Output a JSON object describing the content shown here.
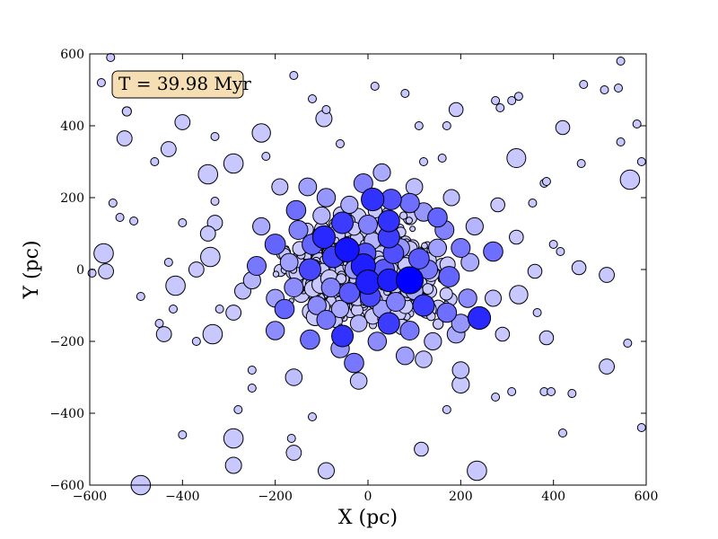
{
  "chart_data": {
    "type": "scatter",
    "title": "",
    "xlabel": "X (pc)",
    "ylabel": "Y (pc)",
    "xlim": [
      -600,
      600
    ],
    "ylim": [
      -600,
      600
    ],
    "xticks": [
      -600,
      -400,
      -200,
      0,
      200,
      400,
      600
    ],
    "yticks": [
      -600,
      -400,
      -200,
      0,
      200,
      400,
      600
    ],
    "xtick_labels": [
      "−600",
      "−400",
      "−200",
      "0",
      "200",
      "400",
      "600"
    ],
    "ytick_labels": [
      "−600",
      "−400",
      "−200",
      "0",
      "200",
      "400",
      "600"
    ],
    "grid": false,
    "annotation": "T = 39.98 Myr",
    "annotation_placement": "top-left",
    "annotation_box_color": "#f5deb3",
    "marker_edge_color": "#000000",
    "color_light": "#c8c8ff",
    "color_dark": "#0000ff",
    "points": [
      {
        "x": 90,
        "y": -30,
        "size": 5,
        "shade": 1.0
      },
      {
        "x": -45,
        "y": 55,
        "size": 4.5,
        "shade": 0.9
      },
      {
        "x": -10,
        "y": 10,
        "size": 4.5,
        "shade": 0.85
      },
      {
        "x": 0,
        "y": -35,
        "size": 4.5,
        "shade": 0.85
      },
      {
        "x": 45,
        "y": -30,
        "size": 4.2,
        "shade": 0.85
      },
      {
        "x": 240,
        "y": -135,
        "size": 4.2,
        "shade": 0.8
      },
      {
        "x": -95,
        "y": 90,
        "size": 4.2,
        "shade": 0.8
      },
      {
        "x": 10,
        "y": 195,
        "size": 4.2,
        "shade": 0.75
      },
      {
        "x": 45,
        "y": 135,
        "size": 4,
        "shade": 0.75
      },
      {
        "x": -55,
        "y": -185,
        "size": 4,
        "shade": 0.75
      },
      {
        "x": -55,
        "y": 130,
        "size": 4,
        "shade": 0.7
      },
      {
        "x": -75,
        "y": 35,
        "size": 4,
        "shade": 0.7
      },
      {
        "x": 45,
        "y": 90,
        "size": 4,
        "shade": 0.7
      },
      {
        "x": 120,
        "y": -100,
        "size": 4,
        "shade": 0.7
      },
      {
        "x": 45,
        "y": -150,
        "size": 4,
        "shade": 0.7
      },
      {
        "x": -125,
        "y": 0,
        "size": 4,
        "shade": 0.65
      },
      {
        "x": 5,
        "y": -75,
        "size": 3.8,
        "shade": 0.65
      },
      {
        "x": 50,
        "y": 195,
        "size": 3.8,
        "shade": 0.6
      },
      {
        "x": -5,
        "y": 45,
        "size": 3.8,
        "shade": 0.6
      },
      {
        "x": 55,
        "y": 45,
        "size": 3.8,
        "shade": 0.6
      },
      {
        "x": -40,
        "y": -65,
        "size": 3.8,
        "shade": 0.55
      },
      {
        "x": 35,
        "y": 0,
        "size": 3.8,
        "shade": 0.55
      },
      {
        "x": 110,
        "y": 30,
        "size": 3.8,
        "shade": 0.55
      },
      {
        "x": -200,
        "y": 70,
        "size": 3.8,
        "shade": 0.5
      },
      {
        "x": 175,
        "y": -20,
        "size": 3.8,
        "shade": 0.5
      },
      {
        "x": -120,
        "y": 70,
        "size": 3.8,
        "shade": 0.5
      },
      {
        "x": 150,
        "y": 145,
        "size": 3.6,
        "shade": 0.5
      },
      {
        "x": -180,
        "y": -110,
        "size": 3.6,
        "shade": 0.5
      },
      {
        "x": 90,
        "y": 185,
        "size": 3.6,
        "shade": 0.45
      },
      {
        "x": 270,
        "y": 50,
        "size": 3.6,
        "shade": 0.45
      },
      {
        "x": -155,
        "y": 165,
        "size": 3.6,
        "shade": 0.45
      },
      {
        "x": -125,
        "y": -195,
        "size": 3.6,
        "shade": 0.45
      },
      {
        "x": 170,
        "y": -120,
        "size": 3.6,
        "shade": 0.45
      },
      {
        "x": -30,
        "y": -260,
        "size": 3.6,
        "shade": 0.4
      },
      {
        "x": 130,
        "y": 0,
        "size": 3.5,
        "shade": 0.4
      },
      {
        "x": -240,
        "y": 10,
        "size": 3.5,
        "shade": 0.4
      },
      {
        "x": 200,
        "y": 60,
        "size": 3.5,
        "shade": 0.4
      },
      {
        "x": -90,
        "y": -140,
        "size": 3.5,
        "shade": 0.4
      },
      {
        "x": 90,
        "y": -170,
        "size": 3.5,
        "shade": 0.4
      },
      {
        "x": -150,
        "y": 110,
        "size": 3.5,
        "shade": 0.35
      },
      {
        "x": 165,
        "y": 110,
        "size": 3.5,
        "shade": 0.35
      },
      {
        "x": -10,
        "y": 240,
        "size": 3.5,
        "shade": 0.35
      },
      {
        "x": 0,
        "y": 125,
        "size": 3.5,
        "shade": 0.35
      },
      {
        "x": -80,
        "y": -50,
        "size": 3.5,
        "shade": 0.35
      },
      {
        "x": 60,
        "y": -90,
        "size": 3.5,
        "shade": 0.35
      },
      {
        "x": -160,
        "y": -50,
        "size": 3.5,
        "shade": 0.3
      },
      {
        "x": 215,
        "y": -80,
        "size": 3.4,
        "shade": 0.3
      },
      {
        "x": -110,
        "y": -100,
        "size": 3.4,
        "shade": 0.3
      },
      {
        "x": 20,
        "y": -200,
        "size": 3.4,
        "shade": 0.3
      },
      {
        "x": -200,
        "y": -170,
        "size": 3.4,
        "shade": 0.3
      },
      {
        "x": 200,
        "y": -150,
        "size": 3.4,
        "shade": 0.25
      },
      {
        "x": -60,
        "y": -220,
        "size": 3.4,
        "shade": 0.25
      },
      {
        "x": 120,
        "y": 160,
        "size": 3.4,
        "shade": 0.25
      },
      {
        "x": -90,
        "y": 200,
        "size": 3.4,
        "shade": 0.25
      },
      {
        "x": 70,
        "y": 60,
        "size": 3.4,
        "shade": 0.25
      },
      {
        "x": -30,
        "y": 0,
        "size": 3.4,
        "shade": 0.25
      },
      {
        "x": 150,
        "y": 60,
        "size": 3.3,
        "shade": 0.2
      },
      {
        "x": -170,
        "y": 20,
        "size": 3.3,
        "shade": 0.2
      },
      {
        "x": 30,
        "y": -110,
        "size": 3.3,
        "shade": 0.2
      },
      {
        "x": -200,
        "y": -80,
        "size": 3.3,
        "shade": 0.2
      },
      {
        "x": 80,
        "y": -240,
        "size": 3.3,
        "shade": 0.2
      },
      {
        "x": -130,
        "y": 230,
        "size": 3.3,
        "shade": 0.2
      },
      {
        "x": 190,
        "y": -180,
        "size": 3.3,
        "shade": 0.15
      },
      {
        "x": 220,
        "y": 20,
        "size": 3.3,
        "shade": 0.15
      },
      {
        "x": -40,
        "y": 180,
        "size": 3.2,
        "shade": 0.15
      },
      {
        "x": 30,
        "y": 270,
        "size": 3.2,
        "shade": 0.15
      },
      {
        "x": -230,
        "y": 120,
        "size": 3.2,
        "shade": 0.15
      },
      {
        "x": 100,
        "y": -60,
        "size": 3.2,
        "shade": 0.15
      },
      {
        "x": -60,
        "y": -110,
        "size": 3.2,
        "shade": 0.15
      },
      {
        "x": 140,
        "y": -200,
        "size": 3.2,
        "shade": 0.1
      },
      {
        "x": -100,
        "y": 150,
        "size": 3.2,
        "shade": 0.1
      },
      {
        "x": 230,
        "y": 120,
        "size": 3.2,
        "shade": 0.1
      },
      {
        "x": -250,
        "y": -30,
        "size": 3.2,
        "shade": 0.1
      },
      {
        "x": 10,
        "y": 80,
        "size": 3.1,
        "shade": 0.1
      },
      {
        "x": -20,
        "y": -150,
        "size": 3.1,
        "shade": 0.1
      },
      {
        "x": 120,
        "y": -250,
        "size": 3.1,
        "shade": 0.05
      },
      {
        "x": 200,
        "y": -280,
        "size": 3.1,
        "shade": 0.05
      },
      {
        "x": -160,
        "y": -300,
        "size": 3.1,
        "shade": 0.05
      },
      {
        "x": 100,
        "y": 230,
        "size": 3.1,
        "shade": 0.05
      },
      {
        "x": -20,
        "y": -310,
        "size": 3.1,
        "shade": 0.05
      },
      {
        "x": 180,
        "y": 200,
        "size": 3,
        "shade": 0.05
      },
      {
        "x": -190,
        "y": 230,
        "size": 3,
        "shade": 0.05
      },
      {
        "x": 270,
        "y": -80,
        "size": 3,
        "shade": 0.05
      },
      {
        "x": -270,
        "y": -60,
        "size": 3,
        "shade": 0.05
      },
      {
        "x": -345,
        "y": 265,
        "size": 3.6,
        "shade": 0.0
      },
      {
        "x": -570,
        "y": 45,
        "size": 3.6,
        "shade": 0.0
      },
      {
        "x": -415,
        "y": -45,
        "size": 3.6,
        "shade": 0.0
      },
      {
        "x": -340,
        "y": 35,
        "size": 3.6,
        "shade": 0.0
      },
      {
        "x": -335,
        "y": -180,
        "size": 3.6,
        "shade": 0.0
      },
      {
        "x": -290,
        "y": 295,
        "size": 3.6,
        "shade": 0.0
      },
      {
        "x": -290,
        "y": -470,
        "size": 3.6,
        "shade": 0.0
      },
      {
        "x": -490,
        "y": -600,
        "size": 3.6,
        "shade": 0.0
      },
      {
        "x": -230,
        "y": 380,
        "size": 3.4,
        "shade": 0.0
      },
      {
        "x": 235,
        "y": -560,
        "size": 3.6,
        "shade": 0.0
      },
      {
        "x": 320,
        "y": 310,
        "size": 3.5,
        "shade": 0.0
      },
      {
        "x": 565,
        "y": 250,
        "size": 3.6,
        "shade": 0.0
      },
      {
        "x": 325,
        "y": -70,
        "size": 3.4,
        "shade": 0.0
      },
      {
        "x": -290,
        "y": -545,
        "size": 3.0,
        "shade": 0.0
      },
      {
        "x": -90,
        "y": -560,
        "size": 3.0,
        "shade": 0.0
      },
      {
        "x": 200,
        "y": -320,
        "size": 3.2,
        "shade": 0.0
      },
      {
        "x": -95,
        "y": 420,
        "size": 3.0,
        "shade": 0.0
      },
      {
        "x": -430,
        "y": 335,
        "size": 2.8,
        "shade": 0.0
      },
      {
        "x": -400,
        "y": 410,
        "size": 2.8,
        "shade": 0.0
      },
      {
        "x": -525,
        "y": 365,
        "size": 2.8,
        "shade": 0.0
      },
      {
        "x": -565,
        "y": -5,
        "size": 2.8,
        "shade": 0.0
      },
      {
        "x": -440,
        "y": -180,
        "size": 2.8,
        "shade": 0.0
      },
      {
        "x": -290,
        "y": -120,
        "size": 2.8,
        "shade": 0.0
      },
      {
        "x": -330,
        "y": 130,
        "size": 2.8,
        "shade": 0.0
      },
      {
        "x": -345,
        "y": 100,
        "size": 2.8,
        "shade": 0.0
      },
      {
        "x": -370,
        "y": 0,
        "size": 2.8,
        "shade": 0.0
      },
      {
        "x": -160,
        "y": -510,
        "size": 2.8,
        "shade": 0.0
      },
      {
        "x": 190,
        "y": 445,
        "size": 2.6,
        "shade": 0.0
      },
      {
        "x": 420,
        "y": 395,
        "size": 2.6,
        "shade": 0.0
      },
      {
        "x": 515,
        "y": -15,
        "size": 2.8,
        "shade": 0.0
      },
      {
        "x": 515,
        "y": -270,
        "size": 2.8,
        "shade": 0.0
      },
      {
        "x": 455,
        "y": 5,
        "size": 2.6,
        "shade": 0.0
      },
      {
        "x": 385,
        "y": -190,
        "size": 2.6,
        "shade": 0.0
      },
      {
        "x": 360,
        "y": -5,
        "size": 2.6,
        "shade": 0.0
      },
      {
        "x": 290,
        "y": -180,
        "size": 2.6,
        "shade": 0.0
      },
      {
        "x": 115,
        "y": -500,
        "size": 2.6,
        "shade": 0.0
      },
      {
        "x": 320,
        "y": 90,
        "size": 2.6,
        "shade": 0.0
      },
      {
        "x": 280,
        "y": 180,
        "size": 2.6,
        "shade": 0.0
      },
      {
        "x": -575,
        "y": 520,
        "size": 1.5,
        "shade": 0.0
      },
      {
        "x": -555,
        "y": 590,
        "size": 1.5,
        "shade": 0.0
      },
      {
        "x": -520,
        "y": 440,
        "size": 1.7,
        "shade": 0.0
      },
      {
        "x": -505,
        "y": 135,
        "size": 1.5,
        "shade": 0.0
      },
      {
        "x": -550,
        "y": 185,
        "size": 1.5,
        "shade": 0.0
      },
      {
        "x": -535,
        "y": 145,
        "size": 1.5,
        "shade": 0.0
      },
      {
        "x": -595,
        "y": -10,
        "size": 1.5,
        "shade": 0.0
      },
      {
        "x": -490,
        "y": -75,
        "size": 1.5,
        "shade": 0.0
      },
      {
        "x": -400,
        "y": -460,
        "size": 1.5,
        "shade": 0.0
      },
      {
        "x": -450,
        "y": -150,
        "size": 1.5,
        "shade": 0.0
      },
      {
        "x": -460,
        "y": 300,
        "size": 1.5,
        "shade": 0.0
      },
      {
        "x": -430,
        "y": 20,
        "size": 1.5,
        "shade": 0.0
      },
      {
        "x": -400,
        "y": 130,
        "size": 1.5,
        "shade": 0.0
      },
      {
        "x": -420,
        "y": -110,
        "size": 1.5,
        "shade": 0.0
      },
      {
        "x": -370,
        "y": -200,
        "size": 1.5,
        "shade": 0.0
      },
      {
        "x": -330,
        "y": 370,
        "size": 1.5,
        "shade": 0.0
      },
      {
        "x": -330,
        "y": 190,
        "size": 1.5,
        "shade": 0.0
      },
      {
        "x": -320,
        "y": -110,
        "size": 1.5,
        "shade": 0.0
      },
      {
        "x": -280,
        "y": -390,
        "size": 1.5,
        "shade": 0.0
      },
      {
        "x": -250,
        "y": -330,
        "size": 1.5,
        "shade": 0.0
      },
      {
        "x": -250,
        "y": -280,
        "size": 1.5,
        "shade": 0.0
      },
      {
        "x": -220,
        "y": 315,
        "size": 1.5,
        "shade": 0.0
      },
      {
        "x": -160,
        "y": 540,
        "size": 1.5,
        "shade": 0.0
      },
      {
        "x": -165,
        "y": -470,
        "size": 1.5,
        "shade": 0.0
      },
      {
        "x": -120,
        "y": -410,
        "size": 1.5,
        "shade": 0.0
      },
      {
        "x": -120,
        "y": 475,
        "size": 1.5,
        "shade": 0.0
      },
      {
        "x": -90,
        "y": 445,
        "size": 1.5,
        "shade": 0.0
      },
      {
        "x": -60,
        "y": 350,
        "size": 1.5,
        "shade": 0.0
      },
      {
        "x": 15,
        "y": 510,
        "size": 1.5,
        "shade": 0.0
      },
      {
        "x": 80,
        "y": 490,
        "size": 1.5,
        "shade": 0.0
      },
      {
        "x": 110,
        "y": 400,
        "size": 1.5,
        "shade": 0.0
      },
      {
        "x": 120,
        "y": 300,
        "size": 1.5,
        "shade": 0.0
      },
      {
        "x": 170,
        "y": 400,
        "size": 1.5,
        "shade": 0.0
      },
      {
        "x": 170,
        "y": -390,
        "size": 1.5,
        "shade": 0.0
      },
      {
        "x": 160,
        "y": 310,
        "size": 1.5,
        "shade": 0.0
      },
      {
        "x": 275,
        "y": -355,
        "size": 1.5,
        "shade": 0.0
      },
      {
        "x": 275,
        "y": 470,
        "size": 1.5,
        "shade": 0.0
      },
      {
        "x": 310,
        "y": 470,
        "size": 1.5,
        "shade": 0.0
      },
      {
        "x": 285,
        "y": 450,
        "size": 1.5,
        "shade": 0.0
      },
      {
        "x": 310,
        "y": -340,
        "size": 1.5,
        "shade": 0.0
      },
      {
        "x": 355,
        "y": 185,
        "size": 1.5,
        "shade": 0.0
      },
      {
        "x": 365,
        "y": -120,
        "size": 1.5,
        "shade": 0.0
      },
      {
        "x": 380,
        "y": -340,
        "size": 1.5,
        "shade": 0.0
      },
      {
        "x": 395,
        "y": -340,
        "size": 1.5,
        "shade": 0.0
      },
      {
        "x": 380,
        "y": 240,
        "size": 1.5,
        "shade": 0.0
      },
      {
        "x": 385,
        "y": 245,
        "size": 1.5,
        "shade": 0.0
      },
      {
        "x": 400,
        "y": 70,
        "size": 1.5,
        "shade": 0.0
      },
      {
        "x": 415,
        "y": 50,
        "size": 1.5,
        "shade": 0.0
      },
      {
        "x": 420,
        "y": -455,
        "size": 1.5,
        "shade": 0.0
      },
      {
        "x": 440,
        "y": -345,
        "size": 1.5,
        "shade": 0.0
      },
      {
        "x": 460,
        "y": 295,
        "size": 1.5,
        "shade": 0.0
      },
      {
        "x": 465,
        "y": 515,
        "size": 1.5,
        "shade": 0.0
      },
      {
        "x": 510,
        "y": 500,
        "size": 1.5,
        "shade": 0.0
      },
      {
        "x": 540,
        "y": 505,
        "size": 1.5,
        "shade": 0.0
      },
      {
        "x": 545,
        "y": 580,
        "size": 1.5,
        "shade": 0.0
      },
      {
        "x": 545,
        "y": 355,
        "size": 1.5,
        "shade": 0.0
      },
      {
        "x": 560,
        "y": -205,
        "size": 1.5,
        "shade": 0.0
      },
      {
        "x": 580,
        "y": 405,
        "size": 1.5,
        "shade": 0.0
      },
      {
        "x": 590,
        "y": -440,
        "size": 1.5,
        "shade": 0.0
      },
      {
        "x": 590,
        "y": 300,
        "size": 1.5,
        "shade": 0.0
      },
      {
        "x": 325,
        "y": 482,
        "size": 1.5,
        "shade": 0.0
      }
    ]
  }
}
